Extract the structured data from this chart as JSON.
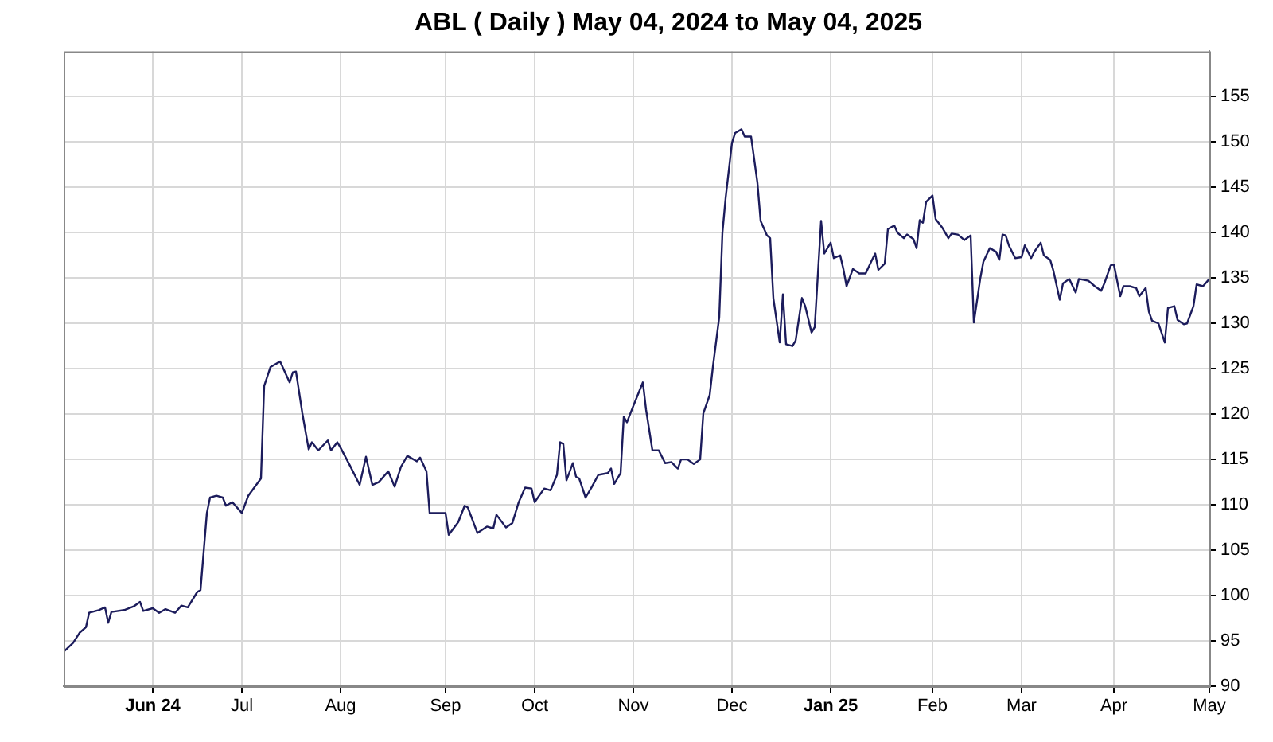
{
  "chart_data": {
    "type": "line",
    "title": "ABL ( Daily ) May 04, 2024 to May 04, 2025",
    "x": [
      "2024-05-06",
      "2024-05-09",
      "2024-05-11",
      "2024-05-13",
      "2024-05-14",
      "2024-05-17",
      "2024-05-19",
      "2024-05-20",
      "2024-05-21",
      "2024-05-25",
      "2024-05-28",
      "2024-05-30",
      "2024-05-31",
      "2024-06-03",
      "2024-06-05",
      "2024-06-07",
      "2024-06-10",
      "2024-06-12",
      "2024-06-14",
      "2024-06-17",
      "2024-06-18",
      "2024-06-20",
      "2024-06-21",
      "2024-06-23",
      "2024-06-25",
      "2024-06-26",
      "2024-06-28",
      "2024-07-01",
      "2024-07-03",
      "2024-07-07",
      "2024-07-08",
      "2024-07-10",
      "2024-07-13",
      "2024-07-16",
      "2024-07-17",
      "2024-07-18",
      "2024-07-20",
      "2024-07-22",
      "2024-07-23",
      "2024-07-25",
      "2024-07-28",
      "2024-07-29",
      "2024-07-31",
      "2024-08-01",
      "2024-08-04",
      "2024-08-07",
      "2024-08-09",
      "2024-08-11",
      "2024-08-13",
      "2024-08-16",
      "2024-08-18",
      "2024-08-20",
      "2024-08-22",
      "2024-08-25",
      "2024-08-26",
      "2024-08-28",
      "2024-08-29",
      "2024-09-03",
      "2024-09-04",
      "2024-09-07",
      "2024-09-09",
      "2024-09-10",
      "2024-09-13",
      "2024-09-16",
      "2024-09-18",
      "2024-09-19",
      "2024-09-22",
      "2024-09-24",
      "2024-09-26",
      "2024-09-28",
      "2024-09-30",
      "2024-10-01",
      "2024-10-04",
      "2024-10-06",
      "2024-10-08",
      "2024-10-09",
      "2024-10-10",
      "2024-10-11",
      "2024-10-13",
      "2024-10-14",
      "2024-10-15",
      "2024-10-17",
      "2024-10-19",
      "2024-10-21",
      "2024-10-24",
      "2024-10-25",
      "2024-10-26",
      "2024-10-28",
      "2024-10-29",
      "2024-10-30",
      "2024-11-01",
      "2024-11-04",
      "2024-11-05",
      "2024-11-07",
      "2024-11-09",
      "2024-11-11",
      "2024-11-13",
      "2024-11-15",
      "2024-11-16",
      "2024-11-18",
      "2024-11-20",
      "2024-11-22",
      "2024-11-23",
      "2024-11-25",
      "2024-11-26",
      "2024-11-28",
      "2024-11-29",
      "2024-11-30",
      "2024-12-02",
      "2024-12-03",
      "2024-12-05",
      "2024-12-06",
      "2024-12-08",
      "2024-12-10",
      "2024-12-11",
      "2024-12-13",
      "2024-12-14",
      "2024-12-15",
      "2024-12-17",
      "2024-12-18",
      "2024-12-19",
      "2024-12-21",
      "2024-12-22",
      "2024-12-24",
      "2024-12-25",
      "2024-12-27",
      "2024-12-28",
      "2024-12-30",
      "2024-12-31",
      "2025-01-02",
      "2025-01-03",
      "2025-01-05",
      "2025-01-06",
      "2025-01-07",
      "2025-01-09",
      "2025-01-11",
      "2025-01-13",
      "2025-01-15",
      "2025-01-16",
      "2025-01-17",
      "2025-01-19",
      "2025-01-20",
      "2025-01-22",
      "2025-01-23",
      "2025-01-25",
      "2025-01-26",
      "2025-01-28",
      "2025-01-29",
      "2025-01-30",
      "2025-01-31",
      "2025-02-01",
      "2025-02-03",
      "2025-02-04",
      "2025-02-06",
      "2025-02-08",
      "2025-02-09",
      "2025-02-11",
      "2025-02-13",
      "2025-02-15",
      "2025-02-16",
      "2025-02-18",
      "2025-02-19",
      "2025-02-21",
      "2025-02-23",
      "2025-02-24",
      "2025-02-25",
      "2025-02-26",
      "2025-02-27",
      "2025-03-01",
      "2025-03-03",
      "2025-03-04",
      "2025-03-06",
      "2025-03-07",
      "2025-03-09",
      "2025-03-10",
      "2025-03-12",
      "2025-03-13",
      "2025-03-15",
      "2025-03-16",
      "2025-03-18",
      "2025-03-20",
      "2025-03-21",
      "2025-03-24",
      "2025-03-26",
      "2025-03-28",
      "2025-03-29",
      "2025-03-31",
      "2025-04-01",
      "2025-04-03",
      "2025-04-04",
      "2025-04-06",
      "2025-04-08",
      "2025-04-09",
      "2025-04-11",
      "2025-04-12",
      "2025-04-13",
      "2025-04-15",
      "2025-04-17",
      "2025-04-18",
      "2025-04-20",
      "2025-04-21",
      "2025-04-23",
      "2025-04-24",
      "2025-04-26",
      "2025-04-27",
      "2025-04-29",
      "2025-05-01"
    ],
    "series": [
      {
        "color": "#1c1c5c",
        "values": [
          93.8,
          94.8,
          95.9,
          96.5,
          98.1,
          98.4,
          98.7,
          97.0,
          98.2,
          98.4,
          98.8,
          99.3,
          98.3,
          98.6,
          98.1,
          98.5,
          98.1,
          98.9,
          98.7,
          100.4,
          100.6,
          109.1,
          110.8,
          111.0,
          110.8,
          109.9,
          110.3,
          109.1,
          111.0,
          112.9,
          123.1,
          125.2,
          125.8,
          123.5,
          124.6,
          124.7,
          120.1,
          116.1,
          116.9,
          116.0,
          117.1,
          116.0,
          116.9,
          116.3,
          114.3,
          112.2,
          115.3,
          112.2,
          112.5,
          113.7,
          112.0,
          114.2,
          115.4,
          114.8,
          115.2,
          113.7,
          109.1,
          109.1,
          106.7,
          108.1,
          109.9,
          109.7,
          106.9,
          107.6,
          107.4,
          108.9,
          107.5,
          108.0,
          110.3,
          111.9,
          111.8,
          110.3,
          111.8,
          111.6,
          113.3,
          116.9,
          116.7,
          112.7,
          114.6,
          113.1,
          112.9,
          110.8,
          112.0,
          113.3,
          113.5,
          114.0,
          112.3,
          113.5,
          119.7,
          119.1,
          120.9,
          123.5,
          120.5,
          116.0,
          116.0,
          114.6,
          114.7,
          114.0,
          115.0,
          115.0,
          114.5,
          115.0,
          120.1,
          122.1,
          125.2,
          130.7,
          140.0,
          143.8,
          149.9,
          151.0,
          151.4,
          150.6,
          150.6,
          145.5,
          141.3,
          139.7,
          139.4,
          132.8,
          127.9,
          133.2,
          127.7,
          127.5,
          128.1,
          132.8,
          131.9,
          129.0,
          129.6,
          141.3,
          137.7,
          138.9,
          137.2,
          137.5,
          136.0,
          134.1,
          136.0,
          135.5,
          135.5,
          137.0,
          137.7,
          135.9,
          136.6,
          140.4,
          140.8,
          140.0,
          139.4,
          139.8,
          139.3,
          138.3,
          141.4,
          141.1,
          143.4,
          144.1,
          141.5,
          140.6,
          139.4,
          139.9,
          139.8,
          139.2,
          139.7,
          130.1,
          134.9,
          136.8,
          138.3,
          137.9,
          137.0,
          139.8,
          139.7,
          138.6,
          137.2,
          137.3,
          138.6,
          137.2,
          137.9,
          138.9,
          137.5,
          137.0,
          135.8,
          132.6,
          134.4,
          134.9,
          133.4,
          134.9,
          134.7,
          134.1,
          133.6,
          134.4,
          136.4,
          136.5,
          133.0,
          134.1,
          134.1,
          133.9,
          133.0,
          133.9,
          131.3,
          130.3,
          130.0,
          127.9,
          131.7,
          131.9,
          130.4,
          129.9,
          130.0,
          131.9,
          134.3,
          134.1,
          134.9
        ]
      }
    ],
    "xlim": [
      "2024-05-06",
      "2025-05-01"
    ],
    "xticks": [
      {
        "value": "2024-06-03",
        "label": "Jun 24"
      },
      {
        "value": "2024-07-01",
        "label": "Jul"
      },
      {
        "value": "2024-08-01",
        "label": "Aug"
      },
      {
        "value": "2024-09-03",
        "label": "Sep"
      },
      {
        "value": "2024-10-01",
        "label": "Oct"
      },
      {
        "value": "2024-11-01",
        "label": "Nov"
      },
      {
        "value": "2024-12-02",
        "label": "Dec"
      },
      {
        "value": "2025-01-02",
        "label": "Jan 25"
      },
      {
        "value": "2025-02-03",
        "label": "Feb"
      },
      {
        "value": "2025-03-03",
        "label": "Mar"
      },
      {
        "value": "2025-04-01",
        "label": "Apr"
      },
      {
        "value": "2025-05-01",
        "label": "May"
      }
    ],
    "ylim": [
      90,
      160
    ],
    "yticks": [
      90,
      95,
      100,
      105,
      110,
      115,
      120,
      125,
      130,
      135,
      140,
      145,
      150,
      155
    ],
    "grid": true,
    "marker": "none",
    "line_style": "solid"
  }
}
